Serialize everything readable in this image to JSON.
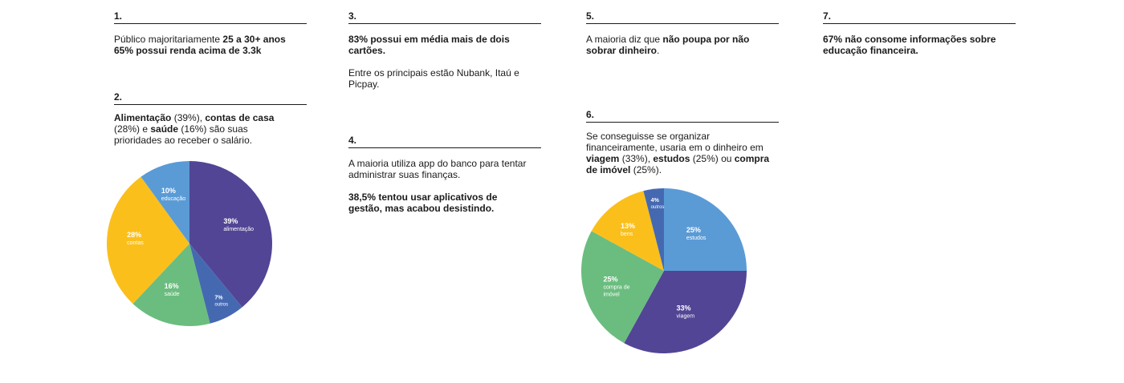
{
  "sections": {
    "s1": {
      "number": "1.",
      "line1_a": "Público majoritariamente ",
      "line1_b": "25 a 30+ anos",
      "line2_b": "65% possui renda acima de 3.3k"
    },
    "s2": {
      "number": "2.",
      "t1": "Alimentação",
      "t2": " (39%), ",
      "t3": "contas de casa",
      "t4": " (28%) e ",
      "t5": "saúde",
      "t6": " (16%) são suas prioridades ao receber o salário."
    },
    "s3": {
      "number": "3.",
      "p1": "83% possui em média mais de dois cartões.",
      "p2": "Entre os principais estão Nubank, Itaú e Picpay."
    },
    "s4": {
      "number": "4.",
      "p1": "A maioria utiliza app do banco para tentar administrar suas finanças.",
      "p2": "38,5% tentou usar aplicativos de gestão, mas acabou desistindo."
    },
    "s5": {
      "number": "5.",
      "t1": "A maioria diz que ",
      "t2": "não poupa por não sobrar dinheiro",
      "t3": "."
    },
    "s6": {
      "number": "6.",
      "t1": "Se conseguisse se organizar financeiramente, usaria em o dinheiro em ",
      "t2": "viagem",
      "t3": " (33%), ",
      "t4": "estudos",
      "t5": " (25%) ou ",
      "t6": "compra de imóvel",
      "t7": " (25%)."
    },
    "s7": {
      "number": "7.",
      "p1": "67% não consome informações sobre educação financeira."
    }
  },
  "chart_data": [
    {
      "type": "pie",
      "slices": [
        {
          "pct_label": "39%",
          "label": [
            "alimentação"
          ],
          "value": 39,
          "color": "#524595"
        },
        {
          "pct_label": "7%",
          "label": [
            "outros"
          ],
          "value": 7,
          "color": "#4569b1"
        },
        {
          "pct_label": "16%",
          "label": [
            "saúde"
          ],
          "value": 16,
          "color": "#6abd7e"
        },
        {
          "pct_label": "28%",
          "label": [
            "contas"
          ],
          "value": 28,
          "color": "#fbbf1c"
        },
        {
          "pct_label": "10%",
          "label": [
            "educação"
          ],
          "value": 10,
          "color": "#5a9bd6"
        }
      ]
    },
    {
      "type": "pie",
      "slices": [
        {
          "pct_label": "25%",
          "label": [
            "estudos"
          ],
          "value": 25,
          "color": "#5a9bd6"
        },
        {
          "pct_label": "33%",
          "label": [
            "viagem"
          ],
          "value": 33,
          "color": "#524595"
        },
        {
          "pct_label": "25%",
          "label": [
            "compra de",
            "imóvel"
          ],
          "value": 25,
          "color": "#6abd7e"
        },
        {
          "pct_label": "13%",
          "label": [
            "bens"
          ],
          "value": 13,
          "color": "#fbbf1c"
        },
        {
          "pct_label": "4%",
          "label": [
            "outros"
          ],
          "value": 4,
          "color": "#4569b1"
        }
      ]
    }
  ]
}
